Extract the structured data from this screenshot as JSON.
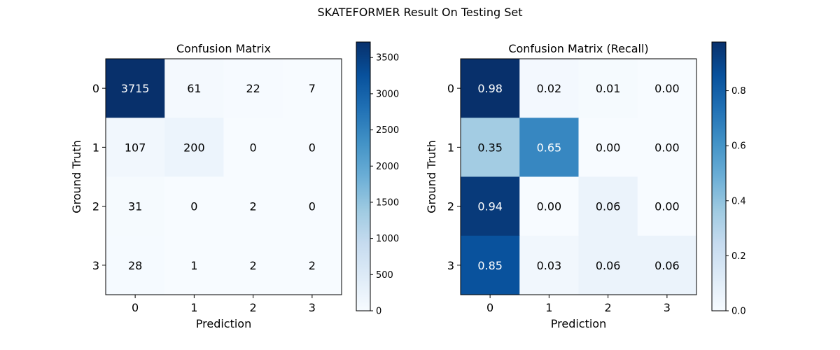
{
  "suptitle": "SKATEFORMER Result On Testing Set",
  "chart_data": [
    {
      "type": "heatmap",
      "title": "Confusion Matrix",
      "xlabel": "Prediction",
      "ylabel": "Ground Truth",
      "x_ticks": [
        "0",
        "1",
        "2",
        "3"
      ],
      "y_ticks": [
        "0",
        "1",
        "2",
        "3"
      ],
      "values": [
        [
          3715,
          61,
          22,
          7
        ],
        [
          107,
          200,
          0,
          0
        ],
        [
          31,
          0,
          2,
          0
        ],
        [
          28,
          1,
          2,
          2
        ]
      ],
      "cell_labels": [
        [
          "3715",
          "61",
          "22",
          "7"
        ],
        [
          "107",
          "200",
          "0",
          "0"
        ],
        [
          "31",
          "0",
          "2",
          "0"
        ],
        [
          "28",
          "1",
          "2",
          "2"
        ]
      ],
      "colormap": "Blues",
      "vmin": 0,
      "vmax": 3715,
      "colorbar_ticks": [
        0,
        500,
        1000,
        1500,
        2000,
        2500,
        3000,
        3500
      ],
      "colorbar_tick_labels": [
        "0",
        "500",
        "1000",
        "1500",
        "2000",
        "2500",
        "3000",
        "3500"
      ]
    },
    {
      "type": "heatmap",
      "title": "Confusion Matrix (Recall)",
      "xlabel": "Prediction",
      "ylabel": "Ground Truth",
      "x_ticks": [
        "0",
        "1",
        "2",
        "3"
      ],
      "y_ticks": [
        "0",
        "1",
        "2",
        "3"
      ],
      "values": [
        [
          0.98,
          0.02,
          0.01,
          0.0
        ],
        [
          0.35,
          0.65,
          0.0,
          0.0
        ],
        [
          0.94,
          0.0,
          0.06,
          0.0
        ],
        [
          0.85,
          0.03,
          0.06,
          0.06
        ]
      ],
      "cell_labels": [
        [
          "0.98",
          "0.02",
          "0.01",
          "0.00"
        ],
        [
          "0.35",
          "0.65",
          "0.00",
          "0.00"
        ],
        [
          "0.94",
          "0.00",
          "0.06",
          "0.00"
        ],
        [
          "0.85",
          "0.03",
          "0.06",
          "0.06"
        ]
      ],
      "colormap": "Blues",
      "vmin": 0,
      "vmax": 0.977,
      "colorbar_ticks": [
        0.0,
        0.2,
        0.4,
        0.6,
        0.8
      ],
      "colorbar_tick_labels": [
        "0.0",
        "0.2",
        "0.4",
        "0.6",
        "0.8"
      ]
    }
  ]
}
